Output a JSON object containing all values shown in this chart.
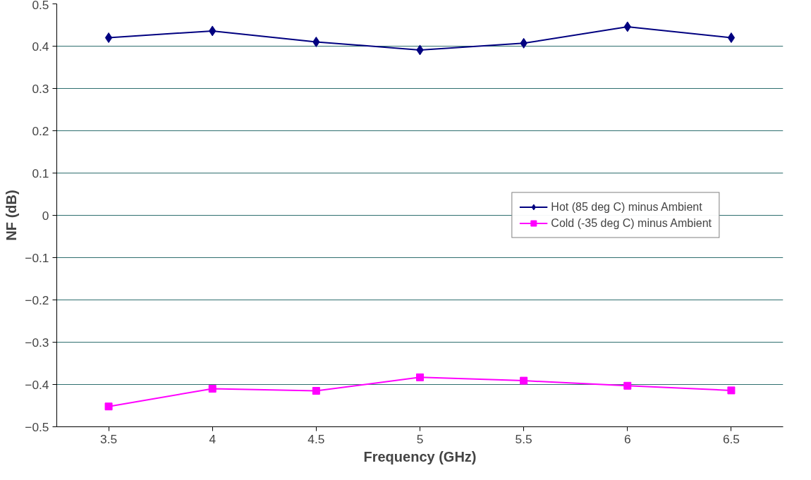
{
  "chart_data": {
    "type": "line",
    "xlabel": "Frequency (GHz)",
    "ylabel": "NF (dB)",
    "categories": [
      "3.5",
      "4",
      "4.5",
      "5",
      "5.5",
      "6",
      "6.5"
    ],
    "series": [
      {
        "name": "Hot (85 deg C) minus Ambient",
        "color": "#000080",
        "marker": "diamond",
        "values": [
          0.42,
          0.436,
          0.41,
          0.391,
          0.407,
          0.446,
          0.42
        ]
      },
      {
        "name": "Cold (-35 deg C) minus Ambient",
        "color": "#ff00ff",
        "marker": "square",
        "values": [
          -0.452,
          -0.41,
          -0.415,
          -0.383,
          -0.391,
          -0.403,
          -0.414
        ]
      }
    ],
    "ylim": [
      -0.5,
      0.5
    ],
    "yticks": [
      -0.5,
      -0.4,
      -0.3,
      -0.2,
      -0.1,
      0,
      0.1,
      0.2,
      0.3,
      0.4,
      0.5
    ],
    "grid": "y",
    "legend": "right",
    "line_style": "solid"
  }
}
